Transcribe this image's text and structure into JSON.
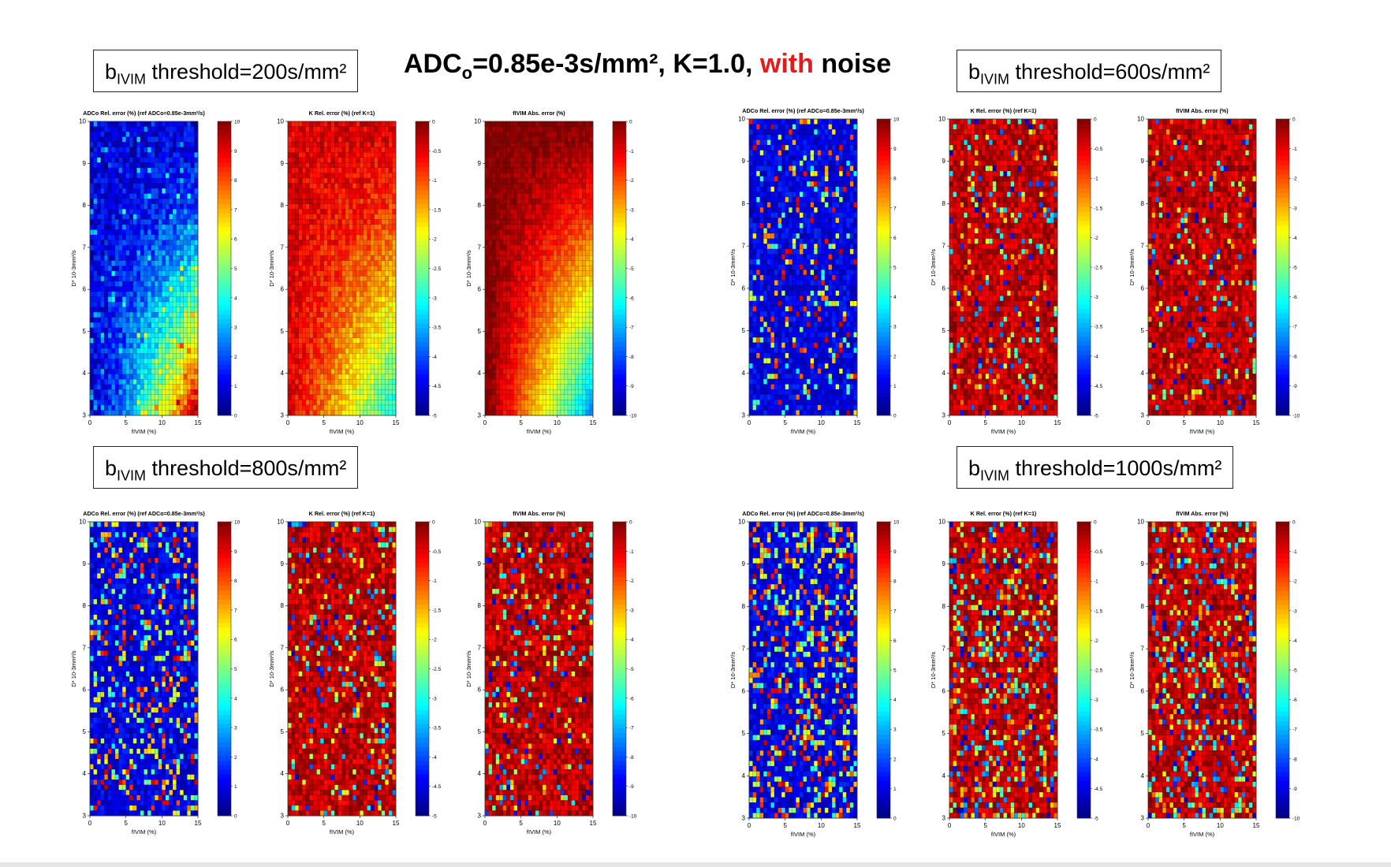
{
  "title": {
    "pre": "ADC",
    "sub": "o",
    "mid": "=0.85e-3s/mm², K=1.0, ",
    "highlight": "with",
    "post": " noise",
    "highlight_color": "#e8191b"
  },
  "thresholds": [
    {
      "b": "b",
      "sub": "IVIM",
      "text": " threshold=200s/mm²"
    },
    {
      "b": "b",
      "sub": "IVIM",
      "text": " threshold=600s/mm²"
    },
    {
      "b": "b",
      "sub": "IVIM",
      "text": " threshold=800s/mm²"
    },
    {
      "b": "b",
      "sub": "IVIM",
      "text": " threshold=1000s/mm²"
    }
  ],
  "chart_data": [
    {
      "type": "heatmap",
      "group": "threshold=200s/mm²",
      "title": "ADCo Rel. error (%) (ref ADCo=0.85e-3mm²/s)",
      "xlabel": "fIVIM (%)",
      "ylabel": "D* 10-3mm²/s",
      "xlim": [
        0,
        15
      ],
      "ylim": [
        3,
        10
      ],
      "xticks": [
        "0",
        "5",
        "10",
        "15"
      ],
      "yticks": [
        "3",
        "4",
        "5",
        "6",
        "7",
        "8",
        "9",
        "10"
      ],
      "clim": [
        0,
        10
      ],
      "cticks": [
        "0",
        "1",
        "2",
        "3",
        "4",
        "5",
        "6",
        "7",
        "8",
        "9",
        "10"
      ],
      "colormap": "jet",
      "pattern": "adc_smooth",
      "noise": 0.45
    },
    {
      "type": "heatmap",
      "group": "threshold=200s/mm²",
      "title": "K Rel. error (%) (ref K=1)",
      "xlabel": "fIVIM (%)",
      "ylabel": "D* 10-3mm²/s",
      "xlim": [
        0,
        15
      ],
      "ylim": [
        3,
        10
      ],
      "xticks": [
        "0",
        "5",
        "10",
        "15"
      ],
      "yticks": [
        "3",
        "4",
        "5",
        "6",
        "7",
        "8",
        "9",
        "10"
      ],
      "clim": [
        -5,
        0
      ],
      "cticks": [
        "-5",
        "-4.5",
        "-4",
        "-3.5",
        "-3",
        "-2.5",
        "-2",
        "-1.5",
        "-1",
        "-0.5",
        "0"
      ],
      "colormap": "jet",
      "pattern": "k_smooth",
      "noise": 0.3
    },
    {
      "type": "heatmap",
      "group": "threshold=200s/mm²",
      "title": "fIVIM Abs. error (%)",
      "xlabel": "fIVIM (%)",
      "ylabel": "D* 10-3mm²/s",
      "xlim": [
        0,
        15
      ],
      "ylim": [
        3,
        10
      ],
      "xticks": [
        "0",
        "5",
        "10",
        "15"
      ],
      "yticks": [
        "3",
        "4",
        "5",
        "6",
        "7",
        "8",
        "9",
        "10"
      ],
      "clim": [
        -10,
        0
      ],
      "cticks": [
        "-10",
        "-9",
        "-8",
        "-7",
        "-6",
        "-5",
        "-4",
        "-3",
        "-2",
        "-1",
        "0"
      ],
      "colormap": "jet",
      "pattern": "f_smooth",
      "noise": 0.08
    },
    {
      "type": "heatmap",
      "group": "threshold=600s/mm²",
      "title": "ADCo Rel. error (%) (ref ADCo=0.85e-3mm²/s)",
      "xlabel": "fIVIM (%)",
      "ylabel": "D* 10-3mm²/s",
      "xlim": [
        0,
        15
      ],
      "ylim": [
        3,
        10
      ],
      "xticks": [
        "0",
        "5",
        "10",
        "15"
      ],
      "yticks": [
        "3",
        "4",
        "5",
        "6",
        "7",
        "8",
        "9",
        "10"
      ],
      "clim": [
        0,
        10
      ],
      "cticks": [
        "0",
        "1",
        "2",
        "3",
        "4",
        "5",
        "6",
        "7",
        "8",
        "9",
        "10"
      ],
      "colormap": "jet",
      "pattern": "adc_noisy",
      "noise": 0.35
    },
    {
      "type": "heatmap",
      "group": "threshold=600s/mm²",
      "title": "K Rel. error (%) (ref K=1)",
      "xlabel": "fIVIM (%)",
      "ylabel": "D* 10-3mm²/s",
      "xlim": [
        0,
        15
      ],
      "ylim": [
        3,
        10
      ],
      "xticks": [
        "0",
        "5",
        "10",
        "15"
      ],
      "yticks": [
        "3",
        "4",
        "5",
        "6",
        "7",
        "8",
        "9",
        "10"
      ],
      "clim": [
        -5,
        0
      ],
      "cticks": [
        "-5",
        "-4.5",
        "-4",
        "-3.5",
        "-3",
        "-2.5",
        "-2",
        "-1.5",
        "-1",
        "-0.5",
        "0"
      ],
      "colormap": "jet",
      "pattern": "k_noisy",
      "noise": 0.35
    },
    {
      "type": "heatmap",
      "group": "threshold=600s/mm²",
      "title": "fIVIM Abs. error (%)",
      "xlabel": "fIVIM (%)",
      "ylabel": "D* 10-3mm²/s",
      "xlim": [
        0,
        15
      ],
      "ylim": [
        3,
        10
      ],
      "xticks": [
        "0",
        "5",
        "10",
        "15"
      ],
      "yticks": [
        "3",
        "4",
        "5",
        "6",
        "7",
        "8",
        "9",
        "10"
      ],
      "clim": [
        -10,
        0
      ],
      "cticks": [
        "-10",
        "-9",
        "-8",
        "-7",
        "-6",
        "-5",
        "-4",
        "-3",
        "-2",
        "-1",
        "0"
      ],
      "colormap": "jet",
      "pattern": "k_noisy",
      "noise": 0.35
    },
    {
      "type": "heatmap",
      "group": "threshold=800s/mm²",
      "title": "ADCo Rel. error (%) (ref ADCo=0.85e-3mm²/s)",
      "xlabel": "fIVIM (%)",
      "ylabel": "D* 10-3mm²/s",
      "xlim": [
        0,
        15
      ],
      "ylim": [
        3,
        10
      ],
      "xticks": [
        "0",
        "5",
        "10",
        "15"
      ],
      "yticks": [
        "3",
        "4",
        "5",
        "6",
        "7",
        "8",
        "9",
        "10"
      ],
      "clim": [
        0,
        10
      ],
      "cticks": [
        "0",
        "1",
        "2",
        "3",
        "4",
        "5",
        "6",
        "7",
        "8",
        "9",
        "10"
      ],
      "colormap": "jet",
      "pattern": "adc_noisy",
      "noise": 0.5
    },
    {
      "type": "heatmap",
      "group": "threshold=800s/mm²",
      "title": "K Rel. error (%) (ref K=1)",
      "xlabel": "fIVIM (%)",
      "ylabel": "D* 10-3mm²/s",
      "xlim": [
        0,
        15
      ],
      "ylim": [
        3,
        10
      ],
      "xticks": [
        "0",
        "5",
        "10",
        "15"
      ],
      "yticks": [
        "3",
        "4",
        "5",
        "6",
        "7",
        "8",
        "9",
        "10"
      ],
      "clim": [
        -5,
        0
      ],
      "cticks": [
        "-5",
        "-4.5",
        "-4",
        "-3.5",
        "-3",
        "-2.5",
        "-2",
        "-1.5",
        "-1",
        "-0.5",
        "0"
      ],
      "colormap": "jet",
      "pattern": "k_noisy",
      "noise": 0.4
    },
    {
      "type": "heatmap",
      "group": "threshold=800s/mm²",
      "title": "fIVIM Abs. error (%)",
      "xlabel": "fIVIM (%)",
      "ylabel": "D* 10-3mm²/s",
      "xlim": [
        0,
        15
      ],
      "ylim": [
        3,
        10
      ],
      "xticks": [
        "0",
        "5",
        "10",
        "15"
      ],
      "yticks": [
        "3",
        "4",
        "5",
        "6",
        "7",
        "8",
        "9",
        "10"
      ],
      "clim": [
        -10,
        0
      ],
      "cticks": [
        "-10",
        "-9",
        "-8",
        "-7",
        "-6",
        "-5",
        "-4",
        "-3",
        "-2",
        "-1",
        "0"
      ],
      "colormap": "jet",
      "pattern": "k_noisy",
      "noise": 0.4
    },
    {
      "type": "heatmap",
      "group": "threshold=1000s/mm²",
      "title": "ADCo Rel. error (%) (ref ADCo=0.85e-3mm²/s)",
      "xlabel": "fIVIM (%)",
      "ylabel": "D* 10-3mm²/s",
      "xlim": [
        0,
        15
      ],
      "ylim": [
        3,
        10
      ],
      "xticks": [
        "0",
        "5",
        "10",
        "15"
      ],
      "yticks": [
        "3",
        "4",
        "5",
        "6",
        "7",
        "8",
        "9",
        "10"
      ],
      "clim": [
        0,
        10
      ],
      "cticks": [
        "0",
        "1",
        "2",
        "3",
        "4",
        "5",
        "6",
        "7",
        "8",
        "9",
        "10"
      ],
      "colormap": "jet",
      "pattern": "adc_noisy",
      "noise": 0.7
    },
    {
      "type": "heatmap",
      "group": "threshold=1000s/mm²",
      "title": "K Rel. error (%) (ref K=1)",
      "xlabel": "fIVIM (%)",
      "ylabel": "D* 10-3mm²/s",
      "xlim": [
        0,
        15
      ],
      "ylim": [
        3,
        10
      ],
      "xticks": [
        "0",
        "5",
        "10",
        "15"
      ],
      "yticks": [
        "3",
        "4",
        "5",
        "6",
        "7",
        "8",
        "9",
        "10"
      ],
      "clim": [
        -5,
        0
      ],
      "cticks": [
        "-5",
        "-4.5",
        "-4",
        "-3.5",
        "-3",
        "-2.5",
        "-2",
        "-1.5",
        "-1",
        "-0.5",
        "0"
      ],
      "colormap": "jet",
      "pattern": "k_noisy",
      "noise": 0.7
    },
    {
      "type": "heatmap",
      "group": "threshold=1000s/mm²",
      "title": "fIVIM Abs. error (%)",
      "xlabel": "fIVIM (%)",
      "ylabel": "D* 10-3mm²/s",
      "xlim": [
        0,
        15
      ],
      "ylim": [
        3,
        10
      ],
      "xticks": [
        "0",
        "5",
        "10",
        "15"
      ],
      "yticks": [
        "3",
        "4",
        "5",
        "6",
        "7",
        "8",
        "9",
        "10"
      ],
      "clim": [
        -10,
        0
      ],
      "cticks": [
        "-10",
        "-9",
        "-8",
        "-7",
        "-6",
        "-5",
        "-4",
        "-3",
        "-2",
        "-1",
        "0"
      ],
      "colormap": "jet",
      "pattern": "k_noisy",
      "noise": 0.7
    }
  ]
}
